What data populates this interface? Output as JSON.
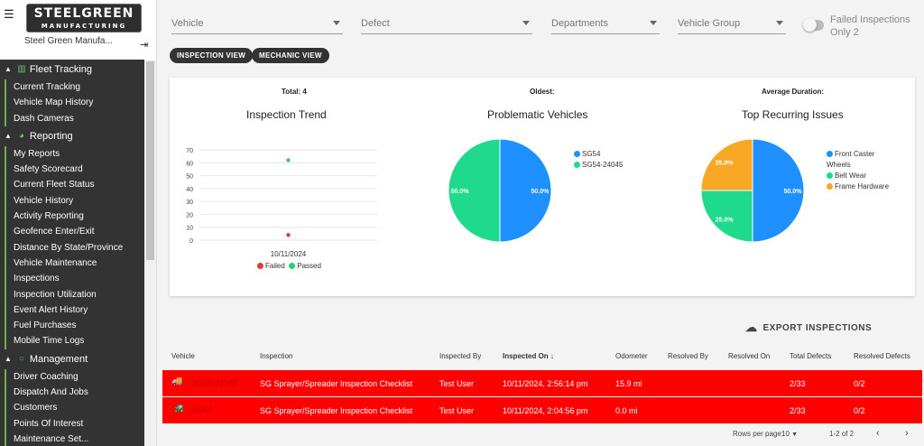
{
  "sidebar": {
    "logo_line1": "STEELGREEN",
    "logo_line2": "MANUFACTURING",
    "company": "Steel Green Manufa...",
    "sections": [
      {
        "label": "Fleet Tracking",
        "items": [
          "Current Tracking",
          "Vehicle Map History",
          "Dash Cameras"
        ]
      },
      {
        "label": "Reporting",
        "items": [
          "My Reports",
          "Safety Scorecard",
          "Current Fleet Status",
          "Vehicle History",
          "Activity Reporting",
          "Geofence Enter/Exit",
          "Distance By State/Province",
          "Vehicle Maintenance",
          "Inspections",
          "Inspection Utilization",
          "Event Alert History",
          "Fuel Purchases",
          "Mobile Time Logs"
        ]
      },
      {
        "label": "Management",
        "items": [
          "Driver Coaching",
          "Dispatch And Jobs",
          "Customers",
          "Points Of Interest",
          "Maintenance Set..."
        ]
      }
    ]
  },
  "filters": {
    "vehicle": "Vehicle",
    "defect": "Defect",
    "departments": "Departments",
    "vehicle_group": "Vehicle Group",
    "failed_only": "Failed Inspections Only 2"
  },
  "views": {
    "inspection": "INSPECTION VIEW",
    "mechanic": "MECHANIC VIEW"
  },
  "stats": {
    "total": "Total: 4",
    "oldest": "Oldest:",
    "avg_duration": "Average Duration:"
  },
  "colors": {
    "failed": "#e53935",
    "passed": "#2ecc71",
    "blue": "#1e90ff",
    "green": "#1fd98c",
    "orange": "#f9a825",
    "row_red": "#ff0000"
  },
  "chart_data": [
    {
      "type": "scatter",
      "title": "Inspection Trend",
      "x": [
        "10/11/2024"
      ],
      "yticks": [
        0,
        10,
        20,
        30,
        40,
        50,
        60,
        70
      ],
      "ylim": [
        0,
        70
      ],
      "series": [
        {
          "name": "Failed",
          "values": [
            4
          ]
        },
        {
          "name": "Passed",
          "values": [
            62
          ]
        }
      ],
      "legend": "bottom"
    },
    {
      "type": "pie",
      "title": "Problematic Vehicles",
      "labels": [
        "SG54",
        "SG54-24045"
      ],
      "values": [
        50.0,
        50.0
      ],
      "data_labels": [
        "50.0%",
        "50.0%"
      ],
      "legend": "right"
    },
    {
      "type": "pie",
      "title": "Top Recurring Issues",
      "labels": [
        "Front Caster Wheels",
        "Belt Wear",
        "Frame Hardware"
      ],
      "values": [
        50.0,
        25.0,
        25.0
      ],
      "data_labels": [
        "50.0%",
        "25.0%",
        "25.0%"
      ],
      "legend": "right"
    }
  ],
  "export_label": "EXPORT INSPECTIONS",
  "table": {
    "headers": [
      "Vehicle",
      "Inspection",
      "Inspected By",
      "Inspected On",
      "Odometer",
      "Resolved By",
      "Resolved On",
      "Total Defects",
      "Resolved Defects"
    ],
    "sort_arrow": "↓",
    "rows": [
      {
        "vehicle": "SG54-24045",
        "inspection": "SG Sprayer/Spreader Inspection Checklist",
        "by": "Test User",
        "on": "10/11/2024, 2:56:14 pm",
        "odometer": "15.9 mi",
        "resolved_by": "",
        "resolved_on": "",
        "total": "2/33",
        "resolved": "0/2"
      },
      {
        "vehicle": "SG54",
        "inspection": "SG Sprayer/Spreader Inspection Checklist",
        "by": "Test User",
        "on": "10/11/2024, 2:04:56 pm",
        "odometer": "0.0 mi",
        "resolved_by": "",
        "resolved_on": "",
        "total": "2/33",
        "resolved": "0/2"
      }
    ]
  },
  "pagination": {
    "rows_label": "Rows per page:",
    "rows_value": "10",
    "range": "1-2 of 2"
  }
}
